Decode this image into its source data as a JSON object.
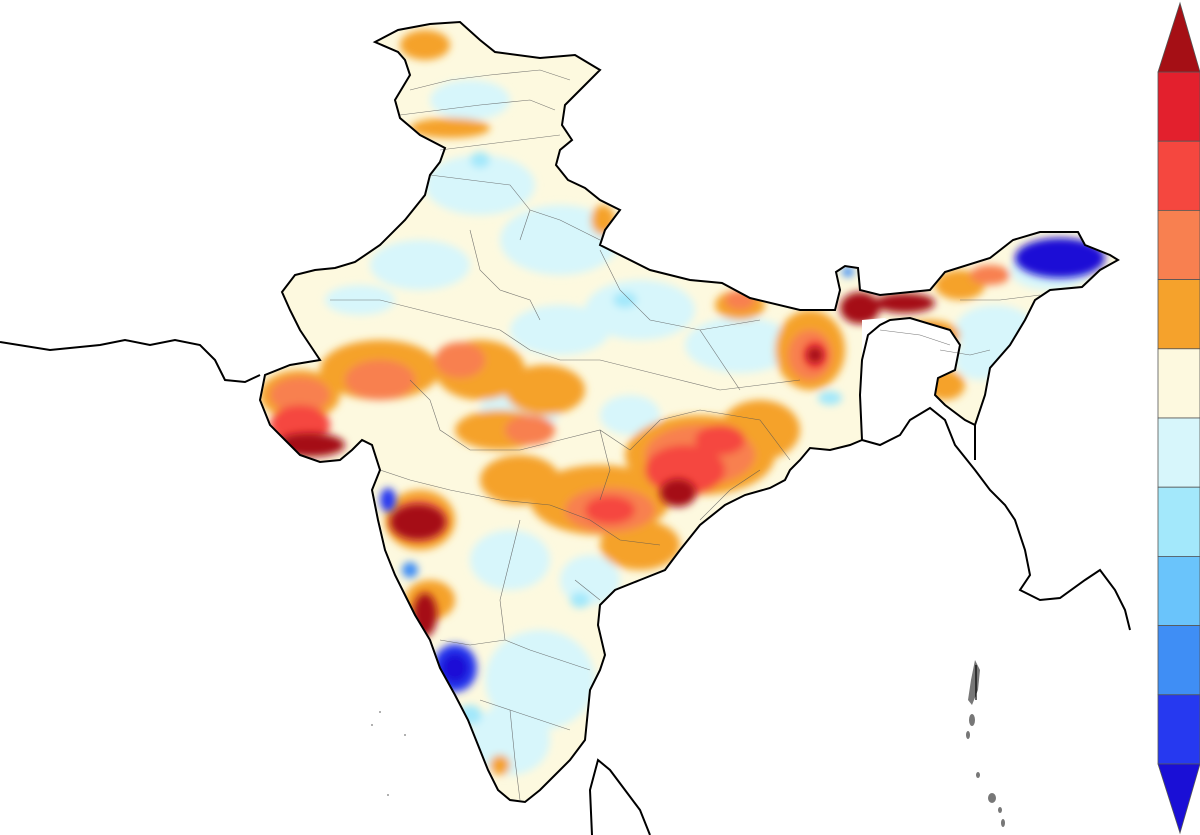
{
  "map": {
    "kind": "anomaly-contour-map",
    "region": "India",
    "background_color": "#ffffff",
    "border_color": "#000000",
    "state_border_color": "#555555",
    "no_data_color": "#ffffff"
  },
  "colorbar": {
    "orientation": "vertical",
    "extend": "both",
    "tick_labels_visible": false,
    "top_arrow_color": "#a50f15",
    "bottom_arrow_color": "#1a0fd6",
    "bins_top_to_bottom": [
      "#e3202d",
      "#f5473f",
      "#f88050",
      "#f5a22c",
      "#fdf9df",
      "#d7f6fb",
      "#a3e8fb",
      "#6ac4fb",
      "#3f8ef5",
      "#2639f0"
    ]
  },
  "legend_categories": {
    "strong_positive": "#a50f15",
    "positive_high": "#e3202d",
    "positive_mid": "#f5473f",
    "positive_low": "#f88050",
    "slight_positive": "#f5a22c",
    "near_normal_positive": "#fdf9df",
    "near_normal_negative": "#d7f6fb",
    "slight_negative": "#a3e8fb",
    "negative_low": "#6ac4fb",
    "negative_mid": "#3f8ef5",
    "strong_negative": "#1a0fd6"
  }
}
